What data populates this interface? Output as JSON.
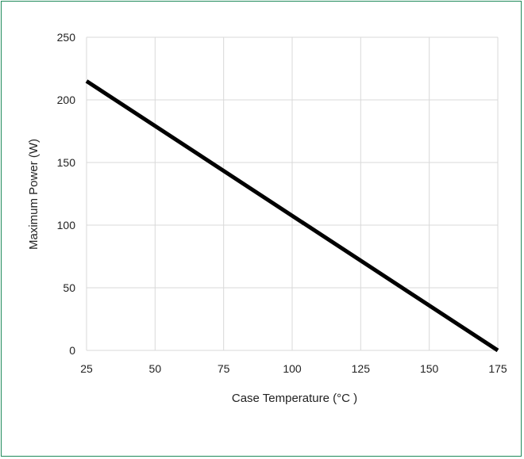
{
  "chart_data": {
    "type": "line",
    "xlabel": "Case Temperature (°C )",
    "ylabel": "Maximum Power (W)",
    "xlim": [
      25,
      175
    ],
    "ylim": [
      0,
      250
    ],
    "x_ticks": [
      "25",
      "50",
      "75",
      "100",
      "125",
      "150",
      "175"
    ],
    "y_ticks": [
      "0",
      "50",
      "100",
      "150",
      "200",
      "250"
    ],
    "grid": true,
    "legend": "none",
    "series": [
      {
        "x": [
          25,
          175
        ],
        "y": [
          215,
          0
        ],
        "color": "#000000"
      }
    ]
  }
}
